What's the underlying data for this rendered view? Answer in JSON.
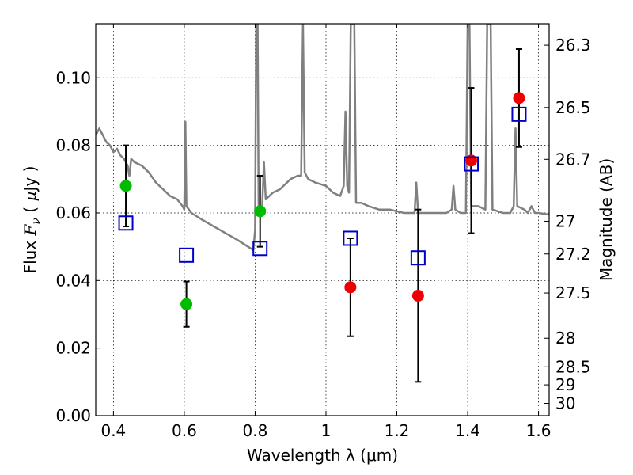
{
  "chart_data": {
    "type": "scatter",
    "xlabel": "Wavelength  λ (μm)",
    "ylabel_parts": [
      "Flux ",
      "F",
      "ν",
      " ( ",
      "μ",
      "Jy )"
    ],
    "y2label": "Magnitude (AB)",
    "xlim": [
      0.35,
      1.63
    ],
    "ylim": [
      0.0,
      0.116
    ],
    "grid": true,
    "x_ticks": [
      0.4,
      0.6,
      0.8,
      1.0,
      1.2,
      1.4,
      1.6
    ],
    "x_tick_labels": [
      "0.4",
      "0.6",
      "0.8",
      "1",
      "1.2",
      "1.4",
      "1.6"
    ],
    "y_ticks": [
      0.0,
      0.02,
      0.04,
      0.06,
      0.08,
      0.1
    ],
    "y_tick_labels": [
      "0.00",
      "0.02",
      "0.04",
      "0.06",
      "0.08",
      "0.10"
    ],
    "mag_ticks": [
      26.3,
      26.5,
      26.7,
      27,
      27.2,
      27.5,
      28,
      28.5,
      29,
      30
    ],
    "mag_tick_labels": [
      "26.3",
      "26.5",
      "26.7",
      "27",
      "27.2",
      "27.5",
      "28",
      "28.5",
      "29",
      "30"
    ],
    "colors": {
      "sed": "#808080",
      "green": "#00bb00",
      "red": "#ee0000",
      "model_box": "#0000cc",
      "errorbar": "#000000"
    },
    "observed_points": [
      {
        "x": 0.435,
        "y": 0.068,
        "err": 0.012,
        "color": "green"
      },
      {
        "x": 0.606,
        "y": 0.033,
        "err": 0.0067,
        "color": "green"
      },
      {
        "x": 0.814,
        "y": 0.0605,
        "err": 0.0105,
        "color": "green"
      },
      {
        "x": 1.069,
        "y": 0.038,
        "err": 0.0145,
        "color": "red"
      },
      {
        "x": 1.26,
        "y": 0.0355,
        "err": 0.0255,
        "color": "red"
      },
      {
        "x": 1.41,
        "y": 0.0755,
        "err": 0.0215,
        "color": "red"
      },
      {
        "x": 1.545,
        "y": 0.094,
        "err": 0.0145,
        "color": "red"
      }
    ],
    "model_points": [
      {
        "x": 0.435,
        "y": 0.057
      },
      {
        "x": 0.606,
        "y": 0.0475
      },
      {
        "x": 0.814,
        "y": 0.0495
      },
      {
        "x": 1.069,
        "y": 0.0525
      },
      {
        "x": 1.26,
        "y": 0.0467
      },
      {
        "x": 1.41,
        "y": 0.0745
      },
      {
        "x": 1.545,
        "y": 0.0892
      }
    ],
    "sed_curve": [
      [
        0.35,
        0.083
      ],
      [
        0.36,
        0.085
      ],
      [
        0.37,
        0.083
      ],
      [
        0.38,
        0.081
      ],
      [
        0.39,
        0.08
      ],
      [
        0.4,
        0.078
      ],
      [
        0.41,
        0.079
      ],
      [
        0.42,
        0.077
      ],
      [
        0.43,
        0.076
      ],
      [
        0.44,
        0.074
      ],
      [
        0.445,
        0.071
      ],
      [
        0.45,
        0.076
      ],
      [
        0.46,
        0.075
      ],
      [
        0.48,
        0.074
      ],
      [
        0.5,
        0.072
      ],
      [
        0.52,
        0.069
      ],
      [
        0.54,
        0.067
      ],
      [
        0.56,
        0.065
      ],
      [
        0.58,
        0.064
      ],
      [
        0.595,
        0.062
      ],
      [
        0.6,
        0.061
      ],
      [
        0.603,
        0.087
      ],
      [
        0.606,
        0.062
      ],
      [
        0.62,
        0.06
      ],
      [
        0.65,
        0.058
      ],
      [
        0.7,
        0.055
      ],
      [
        0.75,
        0.052
      ],
      [
        0.78,
        0.05
      ],
      [
        0.795,
        0.049
      ],
      [
        0.8,
        0.055
      ],
      [
        0.803,
        0.116
      ],
      [
        0.807,
        0.116
      ],
      [
        0.81,
        0.06
      ],
      [
        0.82,
        0.062
      ],
      [
        0.825,
        0.075
      ],
      [
        0.83,
        0.064
      ],
      [
        0.85,
        0.066
      ],
      [
        0.87,
        0.067
      ],
      [
        0.9,
        0.07
      ],
      [
        0.92,
        0.071
      ],
      [
        0.93,
        0.071
      ],
      [
        0.935,
        0.116
      ],
      [
        0.94,
        0.072
      ],
      [
        0.95,
        0.07
      ],
      [
        0.97,
        0.069
      ],
      [
        1.0,
        0.068
      ],
      [
        1.02,
        0.066
      ],
      [
        1.04,
        0.065
      ],
      [
        1.05,
        0.068
      ],
      [
        1.055,
        0.09
      ],
      [
        1.06,
        0.068
      ],
      [
        1.065,
        0.066
      ],
      [
        1.07,
        0.116
      ],
      [
        1.08,
        0.116
      ],
      [
        1.085,
        0.063
      ],
      [
        1.1,
        0.063
      ],
      [
        1.12,
        0.062
      ],
      [
        1.15,
        0.061
      ],
      [
        1.18,
        0.061
      ],
      [
        1.22,
        0.06
      ],
      [
        1.25,
        0.06
      ],
      [
        1.255,
        0.069
      ],
      [
        1.26,
        0.06
      ],
      [
        1.3,
        0.06
      ],
      [
        1.34,
        0.06
      ],
      [
        1.355,
        0.061
      ],
      [
        1.36,
        0.068
      ],
      [
        1.365,
        0.061
      ],
      [
        1.38,
        0.06
      ],
      [
        1.395,
        0.06
      ],
      [
        1.4,
        0.116
      ],
      [
        1.405,
        0.116
      ],
      [
        1.41,
        0.062
      ],
      [
        1.43,
        0.062
      ],
      [
        1.45,
        0.061
      ],
      [
        1.455,
        0.116
      ],
      [
        1.465,
        0.116
      ],
      [
        1.47,
        0.061
      ],
      [
        1.5,
        0.06
      ],
      [
        1.52,
        0.06
      ],
      [
        1.53,
        0.062
      ],
      [
        1.535,
        0.085
      ],
      [
        1.54,
        0.062
      ],
      [
        1.56,
        0.061
      ],
      [
        1.57,
        0.06
      ],
      [
        1.58,
        0.062
      ],
      [
        1.59,
        0.06
      ],
      [
        1.6,
        0.06
      ],
      [
        1.63,
        0.0595
      ]
    ]
  }
}
